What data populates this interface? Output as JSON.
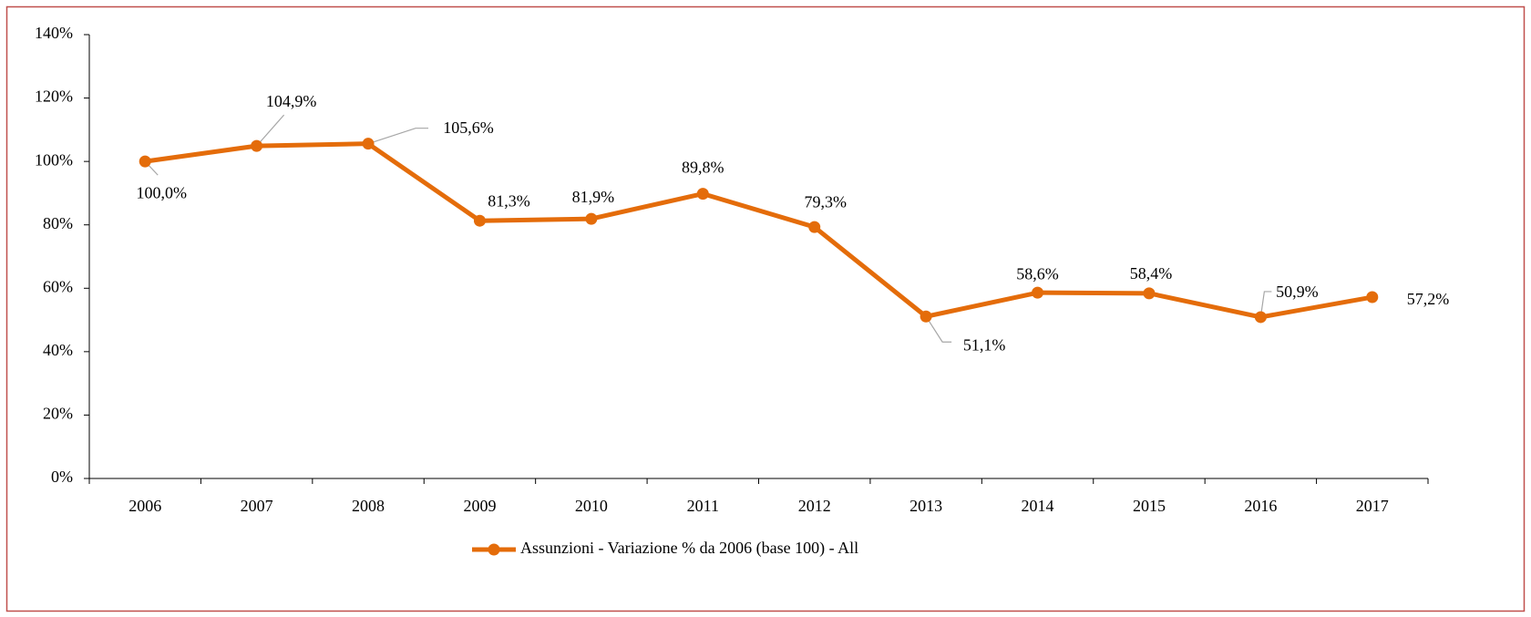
{
  "chart_data": {
    "type": "line",
    "categories": [
      "2006",
      "2007",
      "2008",
      "2009",
      "2010",
      "2011",
      "2012",
      "2013",
      "2014",
      "2015",
      "2016",
      "2017"
    ],
    "series": [
      {
        "name": "Assunzioni - Variazione % da 2006 (base 100) - All",
        "color": "#e46c0a",
        "values": [
          100.0,
          104.9,
          105.6,
          81.3,
          81.9,
          89.8,
          79.3,
          51.1,
          58.6,
          58.4,
          50.9,
          57.2
        ],
        "value_labels": [
          "100,0%",
          "104,9%",
          "105,6%",
          "81,3%",
          "81,9%",
          "89,8%",
          "79,3%",
          "51,1%",
          "58,6%",
          "58,4%",
          "50,9%",
          "57,2%"
        ]
      }
    ],
    "ylim": [
      0,
      140
    ],
    "yticks": [
      {
        "value": 0,
        "label": "0%"
      },
      {
        "value": 20,
        "label": "20%"
      },
      {
        "value": 40,
        "label": "40%"
      },
      {
        "value": 60,
        "label": "60%"
      },
      {
        "value": 80,
        "label": "80%"
      },
      {
        "value": 100,
        "label": "100%"
      },
      {
        "value": 120,
        "label": "120%"
      },
      {
        "value": 140,
        "label": "140%"
      }
    ],
    "grid": false,
    "legend": "bottom"
  }
}
